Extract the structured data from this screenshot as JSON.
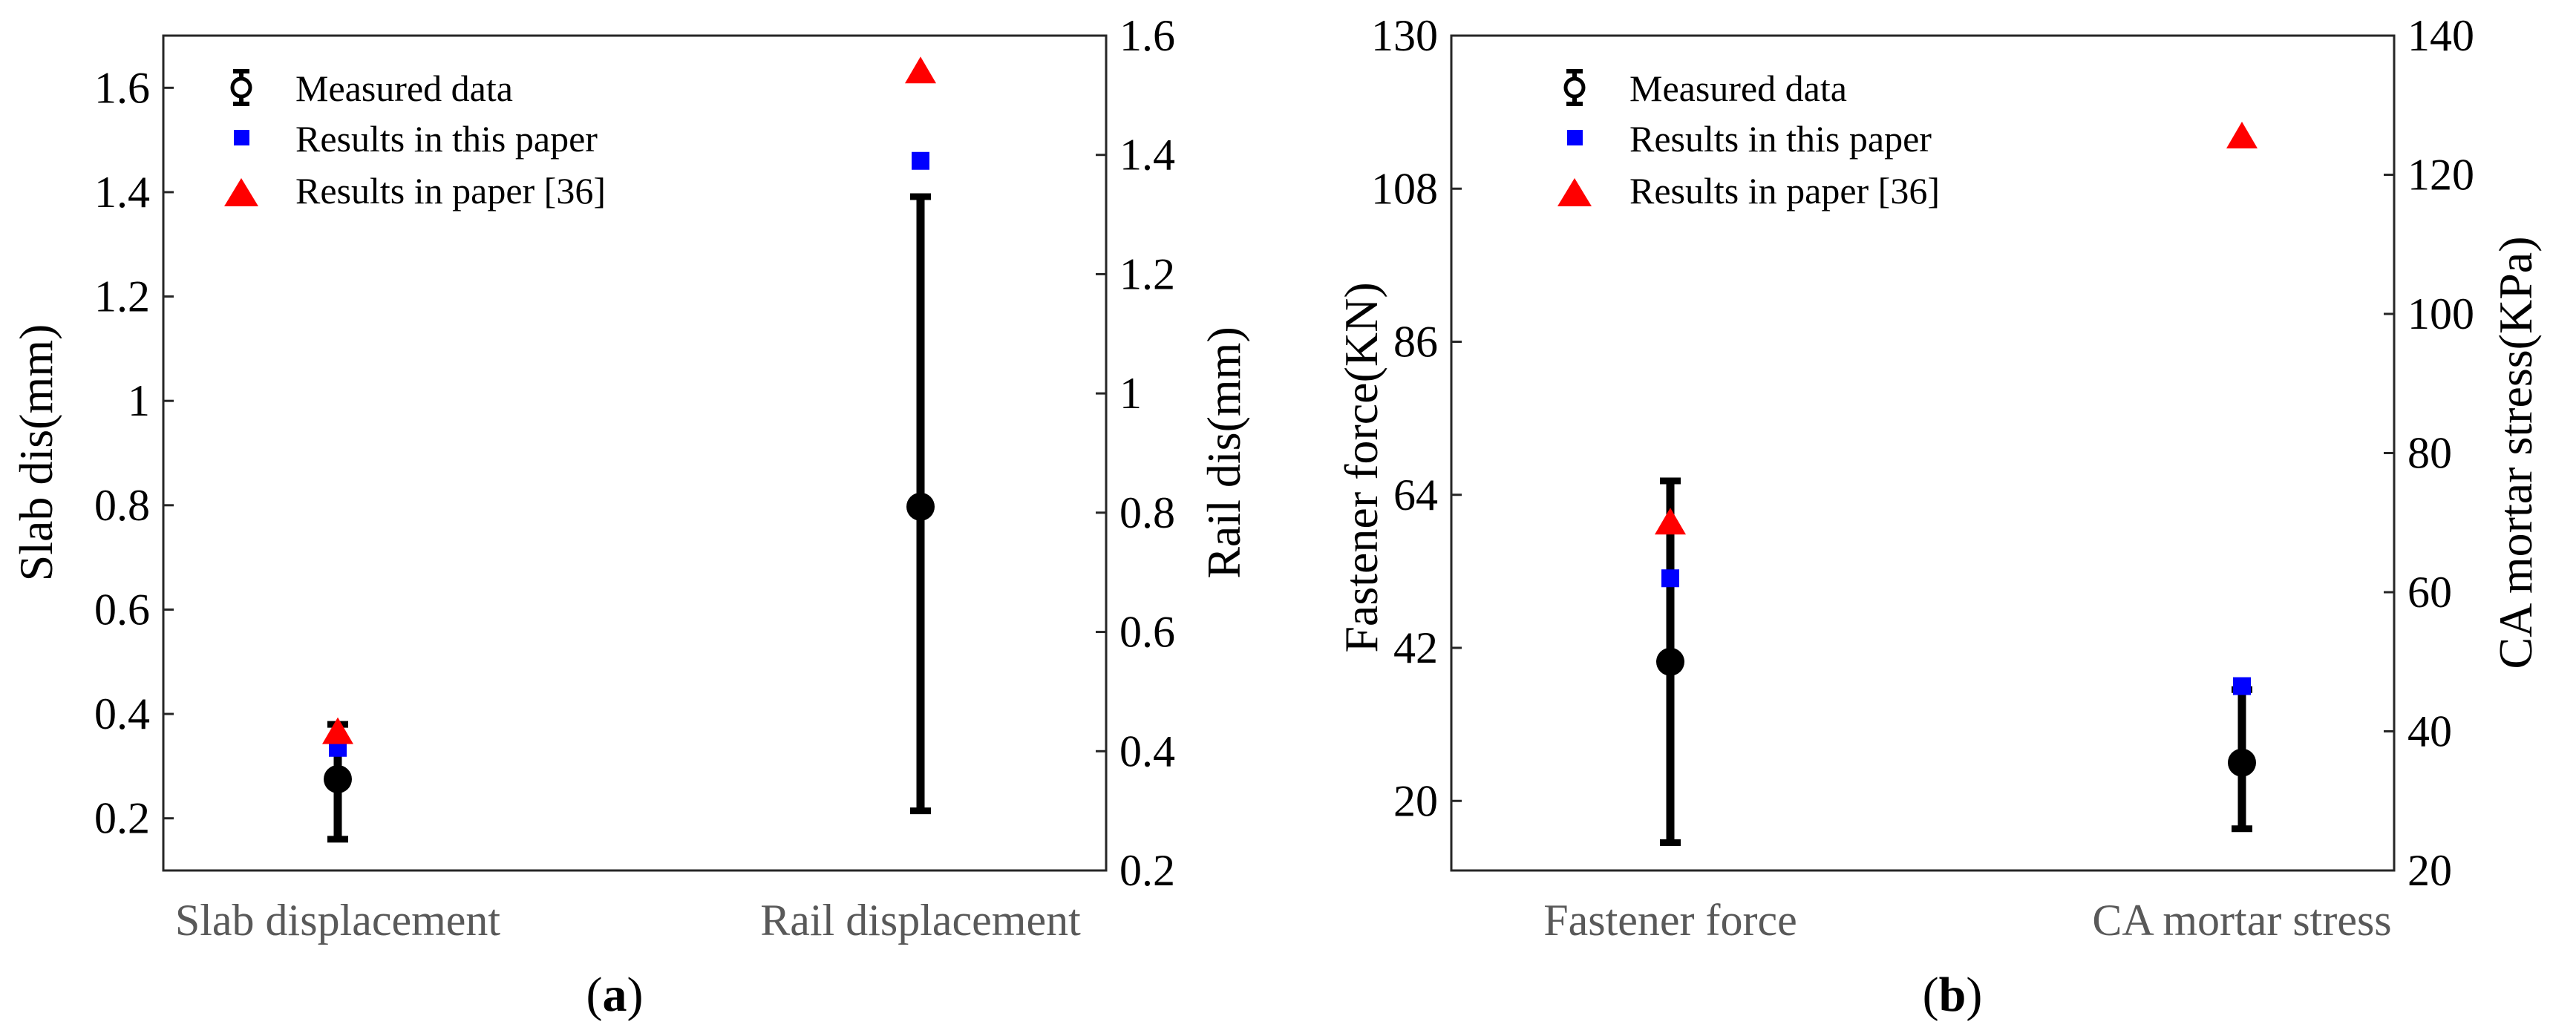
{
  "colors": {
    "measured": "#000000",
    "this_paper": "#0000ff",
    "paper36": "#ff0000",
    "axis": "#262626",
    "category_text": "#595959"
  },
  "chart_data": [
    {
      "type": "scatter",
      "panel_label": {
        "open": "(",
        "letter": "a",
        "close": ")"
      },
      "categories": [
        "Slab displacement",
        "Rail displacement"
      ],
      "legend": [
        "Measured data",
        "Results in this paper",
        "Results in paper [36]"
      ],
      "left_axis": {
        "label": "Slab dis(mm)",
        "range": [
          0.1,
          1.7
        ],
        "ticks": [
          0.2,
          0.4,
          0.6,
          0.8,
          1,
          1.2,
          1.4,
          1.6
        ],
        "tick_labels": [
          "0.2",
          "0.4",
          "0.6",
          "0.8",
          "1",
          "1.2",
          "1.4",
          "1.6"
        ]
      },
      "right_axis": {
        "label": "Rail dis(mm)",
        "range": [
          0.2,
          1.6
        ],
        "ticks": [
          0.2,
          0.4,
          0.6,
          0.8,
          1,
          1.2,
          1.4,
          1.6
        ],
        "tick_labels": [
          "0.2",
          "0.4",
          "0.6",
          "0.8",
          "1",
          "1.2",
          "1.4",
          "1.6"
        ]
      },
      "series": [
        {
          "name": "Measured data",
          "marker": "circle-errorbar",
          "points": [
            {
              "category": 0,
              "axis": "left",
              "value": 0.275,
              "lower": 0.16,
              "upper": 0.38
            },
            {
              "category": 1,
              "axis": "right",
              "value": 0.81,
              "lower": 0.3,
              "upper": 1.33
            }
          ]
        },
        {
          "name": "Results in this paper",
          "marker": "square",
          "points": [
            {
              "category": 0,
              "axis": "left",
              "value": 0.335
            },
            {
              "category": 1,
              "axis": "right",
              "value": 1.39
            }
          ]
        },
        {
          "name": "Results in paper [36]",
          "marker": "triangle",
          "points": [
            {
              "category": 0,
              "axis": "left",
              "value": 0.365
            },
            {
              "category": 1,
              "axis": "right",
              "value": 1.54
            }
          ]
        }
      ]
    },
    {
      "type": "scatter",
      "panel_label": {
        "open": "(",
        "letter": "b",
        "close": ")"
      },
      "categories": [
        "Fastener force",
        "CA mortar stress"
      ],
      "legend": [
        "Measured data",
        "Results in this paper",
        "Results in paper [36]"
      ],
      "left_axis": {
        "label": "Fastener force(KN)",
        "range": [
          10,
          130
        ],
        "ticks": [
          20,
          42,
          64,
          86,
          108,
          130
        ],
        "tick_labels": [
          "20",
          "42",
          "64",
          "86",
          "108",
          "130"
        ]
      },
      "right_axis": {
        "label": "CA mortar stress(KPa)",
        "range": [
          20,
          140
        ],
        "ticks": [
          20,
          40,
          60,
          80,
          100,
          120,
          140
        ],
        "tick_labels": [
          "20",
          "40",
          "60",
          "80",
          "100",
          "120",
          "140"
        ]
      },
      "series": [
        {
          "name": "Measured data",
          "marker": "circle-errorbar",
          "points": [
            {
              "category": 0,
              "axis": "left",
              "value": 40,
              "lower": 14,
              "upper": 66
            },
            {
              "category": 1,
              "axis": "right",
              "value": 35.5,
              "lower": 26,
              "upper": 46
            }
          ]
        },
        {
          "name": "Results in this paper",
          "marker": "square",
          "points": [
            {
              "category": 0,
              "axis": "left",
              "value": 52
            },
            {
              "category": 1,
              "axis": "right",
              "value": 46.5
            }
          ]
        },
        {
          "name": "Results in paper [36]",
          "marker": "triangle",
          "points": [
            {
              "category": 0,
              "axis": "left",
              "value": 60
            },
            {
              "category": 1,
              "axis": "right",
              "value": 125.5
            }
          ]
        }
      ]
    }
  ]
}
